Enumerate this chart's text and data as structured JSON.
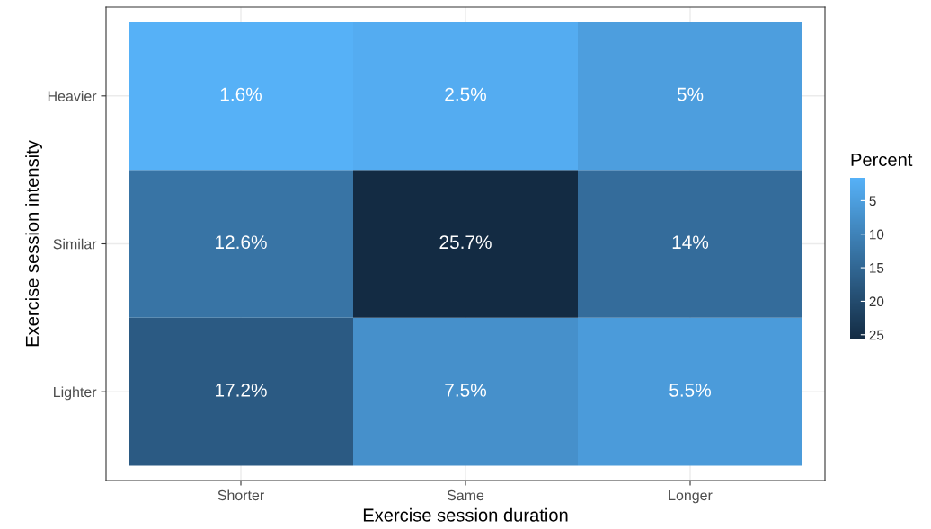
{
  "chart_data": {
    "type": "heatmap",
    "xlabel": "Exercise session duration",
    "ylabel": "Exercise session intensity",
    "clabel": "Percent",
    "categories": [
      "Shorter",
      "Same",
      "Longer"
    ],
    "y_categories": [
      "Heavier",
      "Similar",
      "Lighter"
    ],
    "cells": [
      [
        1.6,
        2.5,
        5
      ],
      [
        12.6,
        25.7,
        14
      ],
      [
        17.2,
        7.5,
        5.5
      ]
    ],
    "cell_labels": [
      [
        "1.6%",
        "2.5%",
        "5%"
      ],
      [
        "12.6%",
        "25.7%",
        "14%"
      ],
      [
        "17.2%",
        "7.5%",
        "5.5%"
      ]
    ],
    "colors": [
      "#56b1f7",
      "#132b43"
    ],
    "clim": [
      25.7,
      1.6
    ],
    "cticks": [
      5,
      10,
      15,
      20,
      25
    ],
    "grid": true
  }
}
